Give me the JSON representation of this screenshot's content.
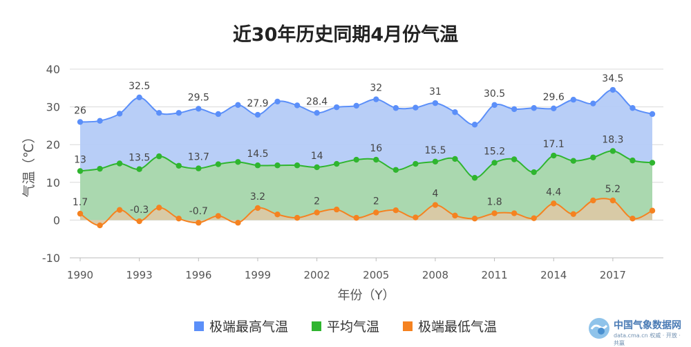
{
  "chart_data": {
    "type": "area",
    "title": "近30年历史同期4月份气温",
    "xlabel": "年份（Y）",
    "ylabel": "气温（℃）",
    "ylim": [
      -10,
      40
    ],
    "yticks": [
      -10,
      0,
      10,
      20,
      30,
      40
    ],
    "xticks": [
      1990,
      1993,
      1996,
      1999,
      2002,
      2005,
      2008,
      2011,
      2014,
      2017
    ],
    "x": [
      1990,
      1991,
      1992,
      1993,
      1994,
      1995,
      1996,
      1997,
      1998,
      1999,
      2000,
      2001,
      2002,
      2003,
      2004,
      2005,
      2006,
      2007,
      2008,
      2009,
      2010,
      2011,
      2012,
      2013,
      2014,
      2015,
      2016,
      2017,
      2018,
      2019
    ],
    "grid": true,
    "legend_position": "bottom",
    "series": [
      {
        "name": "极端最高气温",
        "color": "#5b8ff9",
        "fill": "#b4cbf7",
        "values": [
          26,
          26.3,
          28.2,
          32.5,
          28.4,
          28.4,
          29.5,
          28.1,
          30.5,
          27.9,
          31.4,
          30.4,
          28.4,
          29.9,
          30.3,
          32,
          29.7,
          29.8,
          31,
          28.6,
          25.3,
          30.5,
          29.4,
          29.7,
          29.6,
          31.9,
          30.9,
          34.5,
          29.7,
          28.1
        ],
        "labels": {
          "1990": "26",
          "1993": "32.5",
          "1996": "29.5",
          "1999": "27.9",
          "2002": "28.4",
          "2005": "32",
          "2008": "31",
          "2011": "30.5",
          "2014": "29.6",
          "2017": "34.5"
        }
      },
      {
        "name": "平均气温",
        "color": "#2fb52f",
        "fill": "#a9d8ab",
        "values": [
          13,
          13.6,
          15,
          13.5,
          16.9,
          14.4,
          13.7,
          14.8,
          15.4,
          14.5,
          14.5,
          14.5,
          14,
          14.9,
          16,
          16,
          13.3,
          14.9,
          15.5,
          16.2,
          11.2,
          15.2,
          16.1,
          12.7,
          17.1,
          15.7,
          16.6,
          18.3,
          15.8,
          15.2
        ],
        "labels": {
          "1990": "13",
          "1993": "13.5",
          "1996": "13.7",
          "1999": "14.5",
          "2002": "14",
          "2005": "16",
          "2008": "15.5",
          "2011": "15.2",
          "2014": "17.1",
          "2017": "18.3"
        }
      },
      {
        "name": "极端最低气温",
        "color": "#f58220",
        "fill": "#dac9a5",
        "values": [
          1.7,
          -1.4,
          2.7,
          -0.3,
          3.3,
          0.4,
          -0.7,
          1.1,
          -0.7,
          3.2,
          1.5,
          0.6,
          2,
          2.8,
          0.6,
          2,
          2.6,
          0.7,
          4,
          1.2,
          0.4,
          1.8,
          1.8,
          0.5,
          4.4,
          1.6,
          5.2,
          5.2,
          0.4,
          2.5
        ],
        "labels": {
          "1990": "1.7",
          "1993": "-0.3",
          "1996": "-0.7",
          "1999": "3.2",
          "2002": "2",
          "2005": "2",
          "2008": "4",
          "2011": "1.8",
          "2014": "4.4",
          "2017": "5.2"
        }
      }
    ]
  },
  "watermark": {
    "text": "中国气象数据网",
    "sub": "data.cma.cn 权威 · 开放 · 共赢"
  }
}
